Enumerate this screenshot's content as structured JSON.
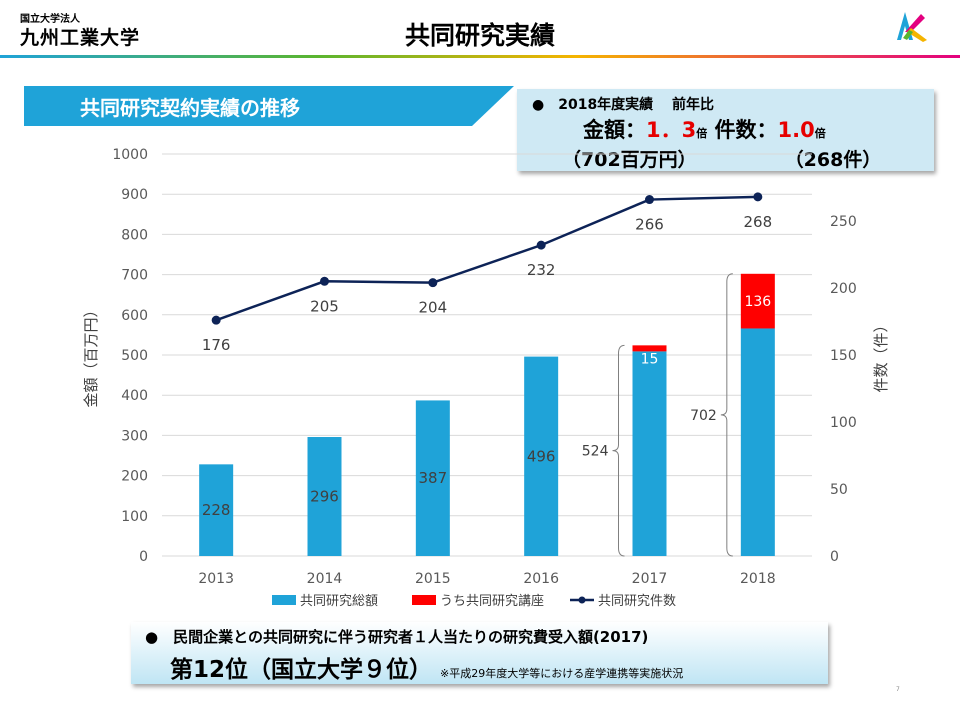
{
  "header": {
    "org_small": "国立大学法人",
    "org_name": "九州工業大学",
    "title": "共同研究実績"
  },
  "banner": {
    "text": "共同研究契約実績の推移"
  },
  "stats": {
    "line1": "●　2018年度実績　 前年比",
    "amount_label": "金額：",
    "amount_ratio": "1．3",
    "amount_unit": "倍",
    "count_label": "件数：",
    "count_ratio": "1.0",
    "count_unit": "倍",
    "amount_value": "（702百万円）",
    "count_value": "（268件）"
  },
  "bottom": {
    "line1": "●　民間企業との共同研究に伴う研究者１人当たりの研究費受入額(2017)",
    "rank": "第12位（国立大学９位）",
    "note": "※平成29年度大学等における産学連携等実施状況"
  },
  "page_number": "7",
  "colors": {
    "bar": "#1fa3d8",
    "lecture": "#ff0000",
    "line": "#0d2357",
    "banner": "#1fa3d8"
  },
  "chart_data": {
    "type": "bar",
    "categories": [
      "2013",
      "2014",
      "2015",
      "2016",
      "2017",
      "2018"
    ],
    "series": [
      {
        "name": "共同研究総額",
        "values": [
          228,
          296,
          387,
          496,
          509,
          566
        ],
        "labels": [
          "228",
          "296",
          "387",
          "496",
          "",
          ""
        ]
      },
      {
        "name": "うち共同研究講座",
        "values": [
          0,
          0,
          0,
          0,
          15,
          136
        ],
        "labels": [
          "",
          "",
          "",
          "",
          "15",
          "136"
        ]
      },
      {
        "name": "共同研究件数",
        "type": "line",
        "axis": "right",
        "values": [
          176,
          205,
          204,
          232,
          266,
          268
        ]
      }
    ],
    "totals": [
      {
        "category": "2017",
        "value": 524
      },
      {
        "category": "2018",
        "value": 702
      }
    ],
    "ylabel": "金額（百万円）",
    "y2label": "件数（件）",
    "ylim": [
      0,
      1000
    ],
    "y2lim": [
      0,
      300
    ],
    "yticks": [
      "0",
      "100",
      "200",
      "300",
      "400",
      "500",
      "600",
      "700",
      "800",
      "900",
      "1000"
    ],
    "y2ticks": [
      "0",
      "50",
      "100",
      "150",
      "200",
      "250"
    ],
    "grid": true,
    "legend": "bottom"
  }
}
